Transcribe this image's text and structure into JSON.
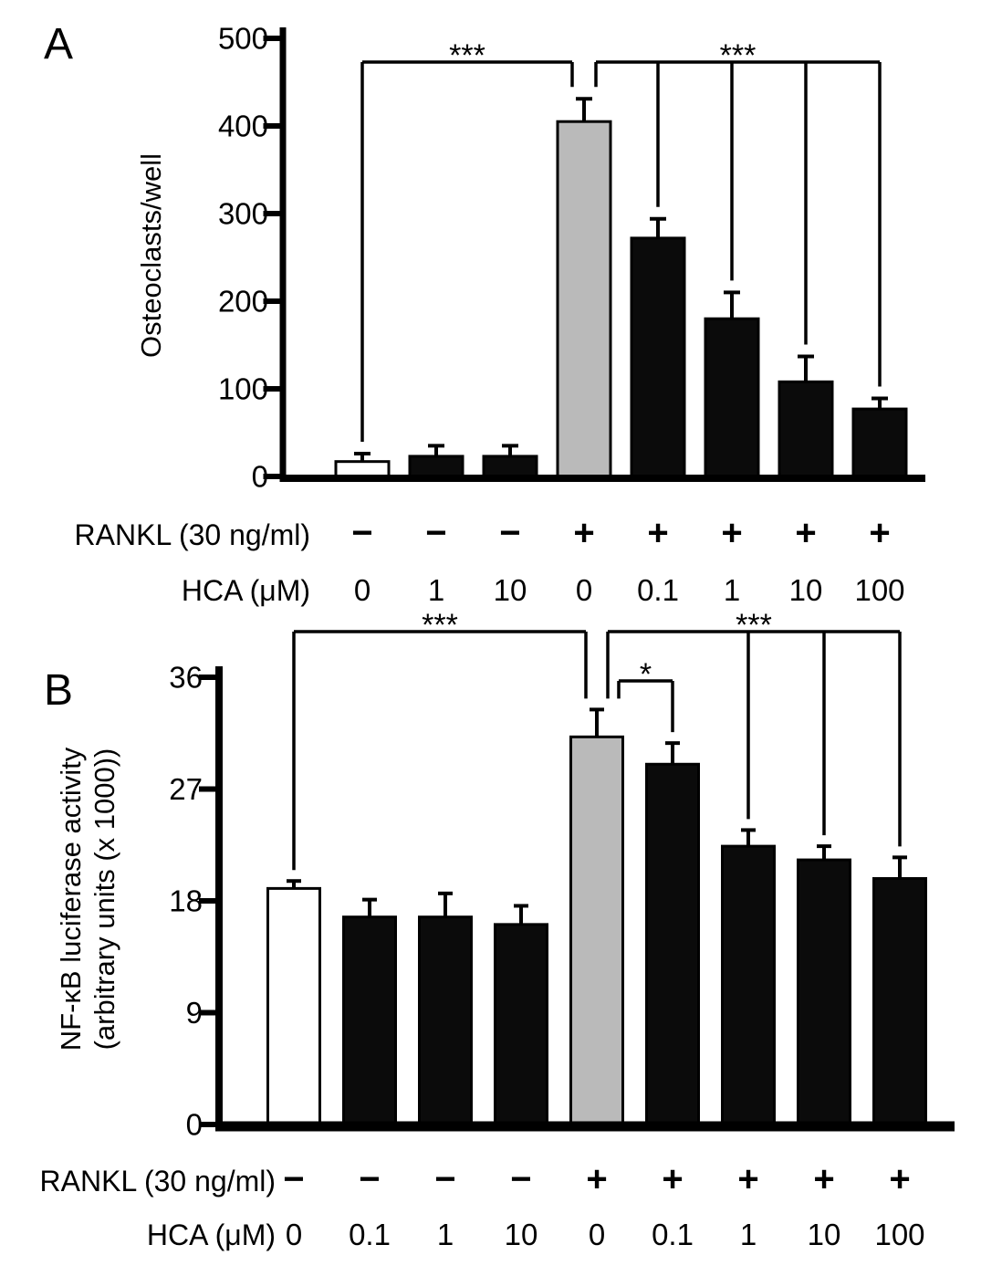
{
  "figure": {
    "background": "#ffffff",
    "colors": {
      "white": "#ffffff",
      "black": "#0b0b0b",
      "gray": "#bababa",
      "axis": "#000000",
      "text": "#000000"
    },
    "panel_labels": [
      "A",
      "B"
    ]
  },
  "chart_data": [
    {
      "panel": "A",
      "type": "bar",
      "title": "",
      "xlabel": "",
      "ylabel": "Osteoclasts/well",
      "ylabel_lines": [
        "Osteoclasts/well"
      ],
      "ylim": [
        0,
        500
      ],
      "yticks": [
        0,
        100,
        200,
        300,
        400,
        500
      ],
      "grid": false,
      "legend": "none",
      "bars": [
        {
          "value": 17,
          "error": 9,
          "color": "white",
          "rankl": "-",
          "hca": "0"
        },
        {
          "value": 23,
          "error": 12,
          "color": "black",
          "rankl": "-",
          "hca": "1"
        },
        {
          "value": 23,
          "error": 12,
          "color": "black",
          "rankl": "-",
          "hca": "10"
        },
        {
          "value": 405,
          "error": 26,
          "color": "gray",
          "rankl": "+",
          "hca": "0"
        },
        {
          "value": 272,
          "error": 22,
          "color": "black",
          "rankl": "+",
          "hca": "0.1"
        },
        {
          "value": 180,
          "error": 30,
          "color": "black",
          "rankl": "+",
          "hca": "1"
        },
        {
          "value": 108,
          "error": 29,
          "color": "black",
          "rankl": "+",
          "hca": "10"
        },
        {
          "value": 77,
          "error": 12,
          "color": "black",
          "rankl": "+",
          "hca": "100"
        }
      ],
      "x_rows": [
        {
          "label": "RANKL (30 ng/ml)",
          "values": [
            "−",
            "−",
            "−",
            "+",
            "+",
            "+",
            "+",
            "+"
          ]
        },
        {
          "label": "HCA (μM)",
          "values": [
            "0",
            "1",
            "10",
            "0",
            "0.1",
            "1",
            "10",
            "100"
          ]
        }
      ],
      "significance": [
        {
          "label": "***",
          "level": 0,
          "drops": [
            {
              "bar": 0
            },
            {
              "bar": 3,
              "dx": -13
            }
          ]
        },
        {
          "label": "***",
          "level": 0,
          "drops": [
            {
              "bar": 3,
              "dx": 13
            },
            {
              "bar": 4
            },
            {
              "bar": 5
            },
            {
              "bar": 6
            },
            {
              "bar": 7
            }
          ]
        }
      ]
    },
    {
      "panel": "B",
      "type": "bar",
      "title": "",
      "xlabel": "",
      "ylabel": "NF-κB luciferase activity (arbitrary units (x 1000))",
      "ylabel_lines": [
        "NF-κB luciferase activity",
        "(arbitrary units (x 1000))"
      ],
      "ylim": [
        0,
        36
      ],
      "yticks": [
        0,
        9,
        18,
        27,
        36
      ],
      "grid": false,
      "legend": "none",
      "bars": [
        {
          "value": 19.0,
          "error": 0.6,
          "color": "white",
          "rankl": "-",
          "hca": "0"
        },
        {
          "value": 16.7,
          "error": 1.4,
          "color": "black",
          "rankl": "-",
          "hca": "0.1"
        },
        {
          "value": 16.7,
          "error": 1.9,
          "color": "black",
          "rankl": "-",
          "hca": "1"
        },
        {
          "value": 16.1,
          "error": 1.5,
          "color": "black",
          "rankl": "-",
          "hca": "10"
        },
        {
          "value": 31.2,
          "error": 2.2,
          "color": "gray",
          "rankl": "+",
          "hca": "0"
        },
        {
          "value": 29.0,
          "error": 1.7,
          "color": "black",
          "rankl": "+",
          "hca": "0.1"
        },
        {
          "value": 22.4,
          "error": 1.3,
          "color": "black",
          "rankl": "+",
          "hca": "1"
        },
        {
          "value": 21.3,
          "error": 1.1,
          "color": "black",
          "rankl": "+",
          "hca": "10"
        },
        {
          "value": 19.8,
          "error": 1.7,
          "color": "black",
          "rankl": "+",
          "hca": "100"
        }
      ],
      "x_rows": [
        {
          "label": "RANKL (30 ng/ml)",
          "values": [
            "−",
            "−",
            "−",
            "−",
            "+",
            "+",
            "+",
            "+",
            "+"
          ]
        },
        {
          "label": "HCA (μM)",
          "values": [
            "0",
            "0.1",
            "1",
            "10",
            "0",
            "0.1",
            "1",
            "10",
            "100"
          ]
        }
      ],
      "significance": [
        {
          "label": "***",
          "level": 0,
          "drops": [
            {
              "bar": 0
            },
            {
              "bar": 4,
              "dx": -12
            }
          ]
        },
        {
          "label": "*",
          "level": 1,
          "drops": [
            {
              "bar": 4,
              "dx": 24
            },
            {
              "bar": 5
            }
          ]
        },
        {
          "label": "***",
          "level": 0,
          "drops": [
            {
              "bar": 4,
              "dx": 12
            },
            {
              "bar": 6
            },
            {
              "bar": 7
            },
            {
              "bar": 8
            }
          ]
        }
      ]
    }
  ]
}
